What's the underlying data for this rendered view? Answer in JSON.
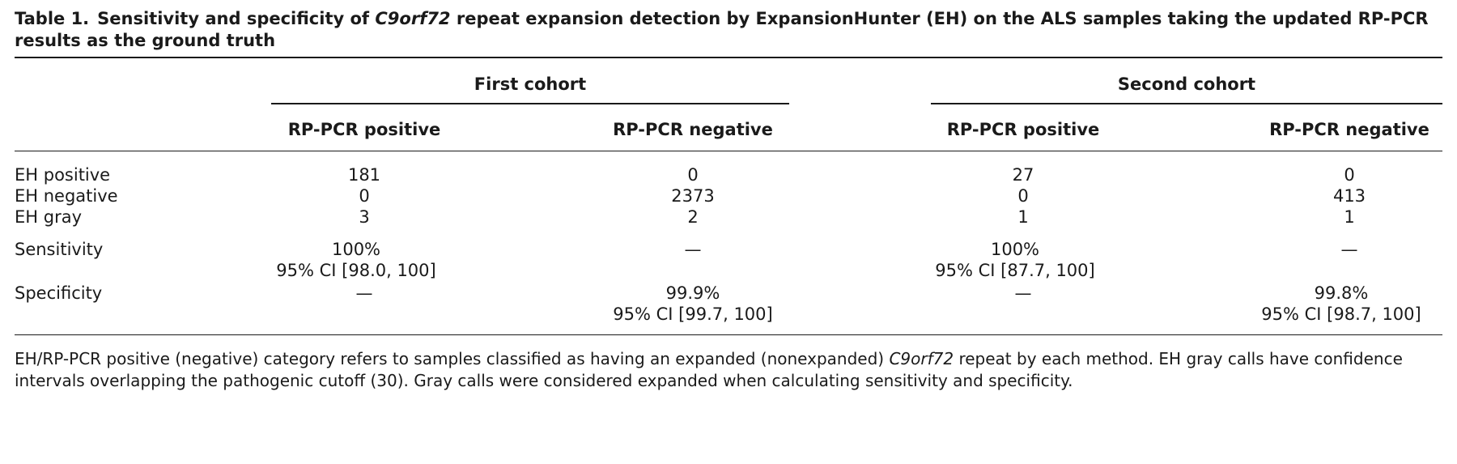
{
  "caption": {
    "label": "Table 1.",
    "text_before": "Sensitivity and specificity of ",
    "gene": "C9orf72",
    "text_after": " repeat expansion detection by ExpansionHunter (EH) on the ALS samples taking the updated RP-PCR results as the ground truth"
  },
  "table": {
    "groups": [
      "First cohort",
      "Second cohort"
    ],
    "columns": [
      "RP-PCR positive",
      "RP-PCR negative",
      "RP-PCR positive",
      "RP-PCR negative"
    ],
    "rows": [
      {
        "label": "EH positive",
        "cells": [
          "181",
          "0",
          "27",
          "0"
        ]
      },
      {
        "label": "EH negative",
        "cells": [
          "0",
          "2373",
          "0",
          "413"
        ]
      },
      {
        "label": "EH gray",
        "cells": [
          "3",
          "2",
          "1",
          "1"
        ]
      }
    ],
    "sensitivity": {
      "label": "Sensitivity",
      "c1": [
        "100%",
        "95% CI [98.0, 100]"
      ],
      "c2": "—",
      "c3": [
        "100%",
        "95% CI [87.7, 100]"
      ],
      "c4": "—"
    },
    "specificity": {
      "label": "Specificity",
      "c1": "—",
      "c2": [
        "99.9%",
        "95% CI [99.7, 100]"
      ],
      "c3": "—",
      "c4": [
        "99.8%",
        "95% CI [98.7, 100]"
      ]
    }
  },
  "footnote": {
    "text_before": "EH/RP-PCR positive (negative) category refers to samples classified as having an expanded (nonexpanded) ",
    "gene": "C9orf72",
    "text_after": " repeat by each method. EH gray calls have confidence intervals overlapping the pathogenic cutoff (30). Gray calls were considered expanded when calculating sensitivity and specificity."
  }
}
